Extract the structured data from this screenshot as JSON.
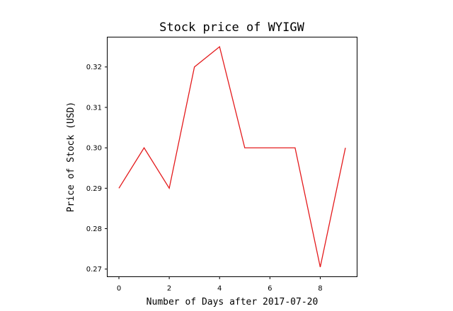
{
  "chart_data": {
    "type": "line",
    "title": "Stock price of WYIGW",
    "xlabel": "Number of Days after 2017-07-20",
    "ylabel": "Price of Stock (USD)",
    "x": [
      0,
      1,
      2,
      3,
      4,
      5,
      6,
      7,
      8,
      9
    ],
    "series": [
      {
        "values": [
          0.29,
          0.3,
          0.29,
          0.32,
          0.325,
          0.3,
          0.3,
          0.3,
          0.2705,
          0.3
        ],
        "color": "#e41a1c"
      }
    ],
    "xlim": [
      -0.45,
      9.45
    ],
    "ylim": [
      0.2682,
      0.3273
    ],
    "xticks": [
      0,
      2,
      4,
      6,
      8
    ],
    "xtick_labels": [
      "0",
      "2",
      "4",
      "6",
      "8"
    ],
    "yticks": [
      0.27,
      0.28,
      0.29,
      0.3,
      0.31,
      0.32
    ],
    "ytick_labels": [
      "0.27",
      "0.28",
      "0.29",
      "0.30",
      "0.31",
      "0.32"
    ],
    "grid": false,
    "legend": "none"
  }
}
